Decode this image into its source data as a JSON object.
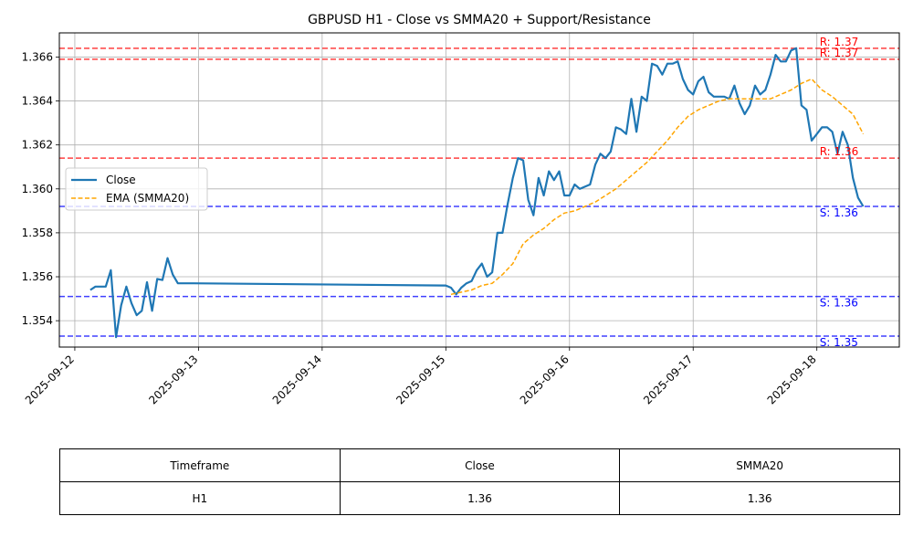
{
  "chart_data": {
    "type": "line",
    "title": "GBPUSD H1 - Close vs SMMA20 + Support/Resistance",
    "xlabel": "",
    "ylabel": "",
    "x_ticks": [
      "2025-09-12",
      "2025-09-13",
      "2025-09-14",
      "2025-09-15",
      "2025-09-16",
      "2025-09-17",
      "2025-09-18"
    ],
    "y_ticks": [
      "1.354",
      "1.356",
      "1.358",
      "1.360",
      "1.362",
      "1.364",
      "1.366"
    ],
    "xlim": [
      "2025-09-11 21:00",
      "2025-09-18 16:00"
    ],
    "ylim": [
      1.3528,
      1.3671
    ],
    "grid": true,
    "legend_position": "center-left",
    "series": [
      {
        "name": "Close",
        "color": "#1f77b4",
        "style": "solid",
        "x": [
          "2025-09-12 03:00",
          "2025-09-12 04:00",
          "2025-09-12 05:00",
          "2025-09-12 06:00",
          "2025-09-12 07:00",
          "2025-09-12 08:00",
          "2025-09-12 09:00",
          "2025-09-12 10:00",
          "2025-09-12 11:00",
          "2025-09-12 12:00",
          "2025-09-12 13:00",
          "2025-09-12 14:00",
          "2025-09-12 15:00",
          "2025-09-12 16:00",
          "2025-09-12 17:00",
          "2025-09-12 18:00",
          "2025-09-12 19:00",
          "2025-09-12 20:00",
          "2025-09-12 21:00",
          "2025-09-12 22:00",
          "2025-09-12 23:00",
          "2025-09-15 00:00",
          "2025-09-15 01:00",
          "2025-09-15 02:00",
          "2025-09-15 03:00",
          "2025-09-15 04:00",
          "2025-09-15 05:00",
          "2025-09-15 06:00",
          "2025-09-15 07:00",
          "2025-09-15 08:00",
          "2025-09-15 09:00",
          "2025-09-15 10:00",
          "2025-09-15 11:00",
          "2025-09-15 12:00",
          "2025-09-15 13:00",
          "2025-09-15 14:00",
          "2025-09-15 15:00",
          "2025-09-15 16:00",
          "2025-09-15 17:00",
          "2025-09-15 18:00",
          "2025-09-15 19:00",
          "2025-09-15 20:00",
          "2025-09-15 21:00",
          "2025-09-15 22:00",
          "2025-09-15 23:00",
          "2025-09-16 00:00",
          "2025-09-16 01:00",
          "2025-09-16 02:00",
          "2025-09-16 03:00",
          "2025-09-16 04:00",
          "2025-09-16 05:00",
          "2025-09-16 06:00",
          "2025-09-16 07:00",
          "2025-09-16 08:00",
          "2025-09-16 09:00",
          "2025-09-16 10:00",
          "2025-09-16 11:00",
          "2025-09-16 12:00",
          "2025-09-16 13:00",
          "2025-09-16 14:00",
          "2025-09-16 15:00",
          "2025-09-16 16:00",
          "2025-09-16 17:00",
          "2025-09-16 18:00",
          "2025-09-16 19:00",
          "2025-09-16 20:00",
          "2025-09-16 21:00",
          "2025-09-16 22:00",
          "2025-09-16 23:00",
          "2025-09-17 00:00",
          "2025-09-17 01:00",
          "2025-09-17 02:00",
          "2025-09-17 03:00",
          "2025-09-17 04:00",
          "2025-09-17 05:00",
          "2025-09-17 06:00",
          "2025-09-17 07:00",
          "2025-09-17 08:00",
          "2025-09-17 09:00",
          "2025-09-17 10:00",
          "2025-09-17 11:00",
          "2025-09-17 12:00",
          "2025-09-17 13:00",
          "2025-09-17 14:00",
          "2025-09-17 15:00",
          "2025-09-17 16:00",
          "2025-09-17 17:00",
          "2025-09-17 18:00",
          "2025-09-17 19:00",
          "2025-09-17 20:00",
          "2025-09-17 21:00",
          "2025-09-17 22:00",
          "2025-09-17 23:00",
          "2025-09-18 00:00",
          "2025-09-18 01:00",
          "2025-09-18 02:00",
          "2025-09-18 03:00",
          "2025-09-18 04:00",
          "2025-09-18 05:00",
          "2025-09-18 06:00",
          "2025-09-18 07:00",
          "2025-09-18 08:00",
          "2025-09-18 09:00"
        ],
        "values": [
          1.3554,
          1.35555,
          1.35555,
          1.35555,
          1.3563,
          1.35325,
          1.3547,
          1.35555,
          1.3548,
          1.35425,
          1.35445,
          1.35575,
          1.35445,
          1.3559,
          1.35585,
          1.35685,
          1.3561,
          1.3557,
          1.3557,
          1.3557,
          1.3557,
          1.3556,
          1.3555,
          1.3552,
          1.3555,
          1.3557,
          1.3558,
          1.3563,
          1.3566,
          1.356,
          1.3562,
          1.358,
          1.358,
          1.3593,
          1.3605,
          1.3614,
          1.3613,
          1.3595,
          1.3588,
          1.3605,
          1.3597,
          1.3608,
          1.3604,
          1.3608,
          1.3597,
          1.3597,
          1.3602,
          1.36,
          1.3601,
          1.3602,
          1.3611,
          1.3616,
          1.3614,
          1.3617,
          1.3628,
          1.3627,
          1.3625,
          1.3641,
          1.3626,
          1.3642,
          1.364,
          1.3657,
          1.3656,
          1.3652,
          1.3657,
          1.3657,
          1.3658,
          1.365,
          1.3645,
          1.3643,
          1.3649,
          1.3651,
          1.3644,
          1.3642,
          1.3642,
          1.3642,
          1.3641,
          1.3647,
          1.3639,
          1.3634,
          1.3638,
          1.3647,
          1.3643,
          1.3645,
          1.3652,
          1.3661,
          1.3658,
          1.3658,
          1.3663,
          1.3664,
          1.3638,
          1.3636,
          1.3622,
          1.3625,
          1.3628,
          1.3628,
          1.3626,
          1.3616,
          1.3626,
          1.362,
          1.3605,
          1.3596,
          1.3592
        ]
      },
      {
        "name": "EMA (SMMA20)",
        "color": "#ffa500",
        "style": "dashed",
        "x": [
          "2025-09-15 01:00",
          "2025-09-15 03:00",
          "2025-09-15 05:00",
          "2025-09-15 07:00",
          "2025-09-15 09:00",
          "2025-09-15 11:00",
          "2025-09-15 13:00",
          "2025-09-15 15:00",
          "2025-09-15 17:00",
          "2025-09-15 19:00",
          "2025-09-15 21:00",
          "2025-09-15 23:00",
          "2025-09-16 01:00",
          "2025-09-16 03:00",
          "2025-09-16 05:00",
          "2025-09-16 07:00",
          "2025-09-16 09:00",
          "2025-09-16 11:00",
          "2025-09-16 13:00",
          "2025-09-16 15:00",
          "2025-09-16 17:00",
          "2025-09-16 19:00",
          "2025-09-16 21:00",
          "2025-09-16 23:00",
          "2025-09-17 01:00",
          "2025-09-17 03:00",
          "2025-09-17 05:00",
          "2025-09-17 07:00",
          "2025-09-17 09:00",
          "2025-09-17 11:00",
          "2025-09-17 13:00",
          "2025-09-17 15:00",
          "2025-09-17 17:00",
          "2025-09-17 19:00",
          "2025-09-17 21:00",
          "2025-09-17 23:00",
          "2025-09-18 01:00",
          "2025-09-18 03:00",
          "2025-09-18 05:00",
          "2025-09-18 07:00",
          "2025-09-18 09:00"
        ],
        "values": [
          1.3552,
          1.3553,
          1.3554,
          1.3556,
          1.3557,
          1.3561,
          1.3566,
          1.3575,
          1.3579,
          1.3582,
          1.3586,
          1.3589,
          1.359,
          1.3592,
          1.3594,
          1.3597,
          1.36,
          1.3604,
          1.3608,
          1.3612,
          1.3617,
          1.3622,
          1.3628,
          1.3633,
          1.3636,
          1.3638,
          1.364,
          1.3641,
          1.3641,
          1.3641,
          1.3641,
          1.3641,
          1.3643,
          1.3645,
          1.3648,
          1.365,
          1.3645,
          1.3642,
          1.3638,
          1.3634,
          1.3625
        ]
      }
    ],
    "levels": [
      {
        "kind": "resistance",
        "value": 1.3664,
        "label": "R: 1.37",
        "color": "#ff0000"
      },
      {
        "kind": "resistance",
        "value": 1.3659,
        "label": "R: 1.37",
        "color": "#ff0000"
      },
      {
        "kind": "resistance",
        "value": 1.3614,
        "label": "R: 1.36",
        "color": "#ff0000"
      },
      {
        "kind": "support",
        "value": 1.3592,
        "label": "S: 1.36",
        "color": "#0000ff"
      },
      {
        "kind": "support",
        "value": 1.3551,
        "label": "S: 1.36",
        "color": "#0000ff"
      },
      {
        "kind": "support",
        "value": 1.3533,
        "label": "S: 1.35",
        "color": "#0000ff"
      }
    ]
  },
  "table": {
    "headers": [
      "Timeframe",
      "Close",
      "SMMA20"
    ],
    "rows": [
      [
        "H1",
        "1.36",
        "1.36"
      ]
    ]
  }
}
